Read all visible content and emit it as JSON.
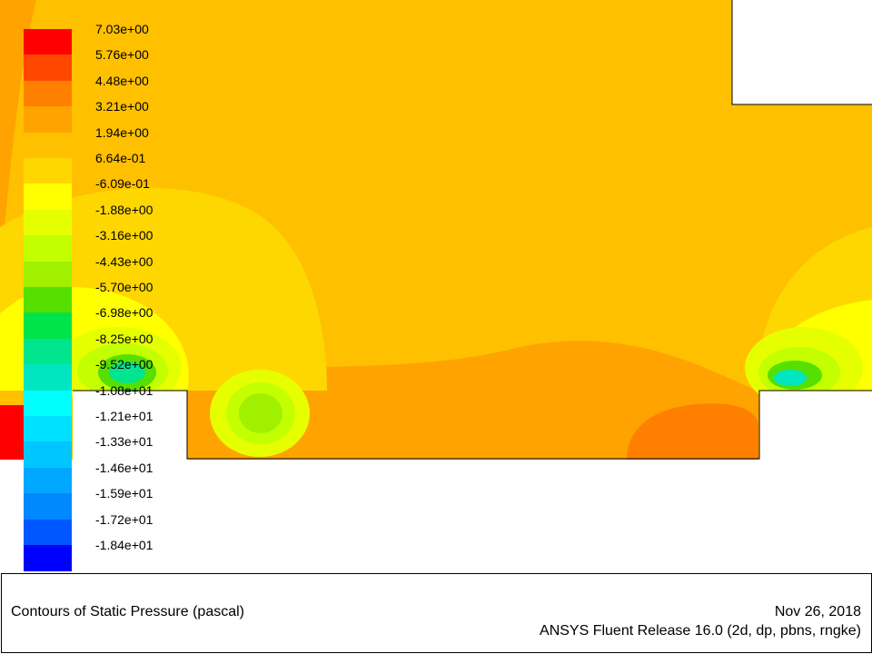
{
  "colormap": {
    "labels": [
      "7.03e+00",
      "5.76e+00",
      "4.48e+00",
      "3.21e+00",
      "1.94e+00",
      "6.64e-01",
      "-6.09e-01",
      "-1.88e+00",
      "-3.16e+00",
      "-4.43e+00",
      "-5.70e+00",
      "-6.98e+00",
      "-8.25e+00",
      "-9.52e+00",
      "-1.08e+01",
      "-1.21e+01",
      "-1.33e+01",
      "-1.46e+01",
      "-1.59e+01",
      "-1.72e+01",
      "-1.84e+01"
    ],
    "colors": [
      "#ff0000",
      "#ff4700",
      "#ff8000",
      "#ffa300",
      "#ffc000",
      "#ffd700",
      "#ffff00",
      "#e6ff00",
      "#c3ff00",
      "#a0f000",
      "#55e000",
      "#00e44a",
      "#00e58e",
      "#00e6c0",
      "#00ffff",
      "#00e0ff",
      "#00c6ff",
      "#00a8ff",
      "#0088ff",
      "#0057ff",
      "#0000ff"
    ]
  },
  "info": {
    "title": "Contours of Static Pressure (pascal)",
    "date": "Nov 26, 2018",
    "software": "ANSYS Fluent Release 16.0 (2d, dp, pbns, rngke)"
  }
}
